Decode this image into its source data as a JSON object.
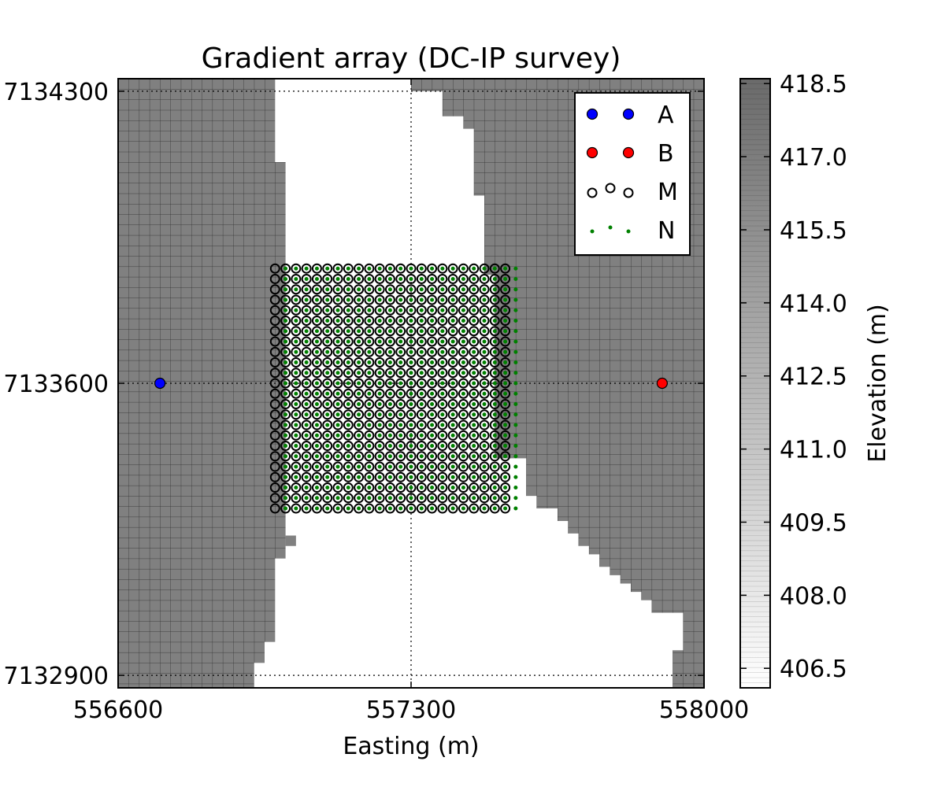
{
  "chart_data": {
    "type": "scatter",
    "title": "Gradient array (DC-IP survey)",
    "xlabel": "Easting (m)",
    "ylabel": "",
    "xlim": [
      556600,
      558000
    ],
    "ylim": [
      7132870,
      7134330
    ],
    "xticks": [
      556600,
      557300,
      558000
    ],
    "yticks": [
      7132900,
      7133600,
      7134300
    ],
    "xtick_labels": [
      "556600",
      "557300",
      "558000"
    ],
    "ytick_labels": [
      "7132900",
      "7133600",
      "7134300"
    ],
    "grid": true,
    "legend_position": "top-right",
    "colorbar": {
      "label": "Elevation (m)",
      "range": [
        406.1,
        418.6
      ],
      "ticks": [
        406.5,
        408.0,
        409.5,
        411.0,
        412.5,
        414.0,
        415.5,
        417.0,
        418.5
      ],
      "tick_labels": [
        "406.5",
        "408.0",
        "409.5",
        "411.0",
        "412.5",
        "414.0",
        "415.5",
        "417.0",
        "418.5"
      ],
      "colormap": "gray_r"
    },
    "topography": {
      "cell_size": 25,
      "fill_color": "#808080",
      "note_removed": "",
      "white_channel_west_edge": [
        [
          7134330,
          556975
        ],
        [
          7134230,
          556975
        ],
        [
          7134130,
          557000
        ],
        [
          7134030,
          557000
        ],
        [
          7133830,
          557000
        ],
        [
          7133630,
          557000
        ],
        [
          7133430,
          557000
        ],
        [
          7133280,
          557000
        ],
        [
          7133180,
          556975
        ],
        [
          7133080,
          556975
        ],
        [
          7132980,
          556950
        ],
        [
          7132930,
          556925
        ],
        [
          7132870,
          556875
        ]
      ],
      "white_channel_east_edge": [
        [
          7134330,
          557300
        ],
        [
          7134300,
          557300
        ],
        [
          7134280,
          557375
        ],
        [
          7134240,
          557375
        ],
        [
          7134210,
          557425
        ],
        [
          7134160,
          557450
        ],
        [
          7134050,
          557450
        ],
        [
          7134000,
          557475
        ],
        [
          7133950,
          557475
        ],
        [
          7133860,
          557475
        ],
        [
          7133760,
          557500
        ],
        [
          7133660,
          557500
        ],
        [
          7133560,
          557500
        ],
        [
          7133420,
          557500
        ],
        [
          7133330,
          557575
        ],
        [
          7133300,
          557600
        ],
        [
          7133270,
          557650
        ],
        [
          7133240,
          557675
        ],
        [
          7133210,
          557700
        ],
        [
          7133190,
          557725
        ],
        [
          7133160,
          557750
        ],
        [
          7133140,
          557775
        ],
        [
          7133120,
          557800
        ],
        [
          7133100,
          557825
        ],
        [
          7133080,
          557850
        ],
        [
          7133050,
          557875
        ],
        [
          7133000,
          557950
        ],
        [
          7132960,
          557950
        ],
        [
          7132950,
          557925
        ],
        [
          7132870,
          557925
        ]
      ],
      "white_pit_cells": [
        [
          557000,
          7133210,
          25,
          25
        ]
      ]
    },
    "series": [
      {
        "name": "A",
        "color": "#0000ff",
        "marker": "filled-circle",
        "points": [
          [
            556700,
            7133600
          ]
        ]
      },
      {
        "name": "B",
        "color": "#ff0000",
        "marker": "filled-circle",
        "points": [
          [
            557900,
            7133600
          ]
        ]
      },
      {
        "name": "M",
        "color": "#000000",
        "marker": "open-circle",
        "grid": {
          "x_start": 556975,
          "x_end": 557525,
          "x_step": 25,
          "y_start": 7133300,
          "y_end": 7133875,
          "y_step": 25
        }
      },
      {
        "name": "N",
        "color": "#008000",
        "marker": "small-dot",
        "grid": {
          "x_start": 557000,
          "x_end": 557550,
          "x_step": 25,
          "y_start": 7133300,
          "y_end": 7133875,
          "y_step": 25
        }
      }
    ],
    "legend_entries": [
      "A",
      "B",
      "M",
      "N"
    ]
  }
}
